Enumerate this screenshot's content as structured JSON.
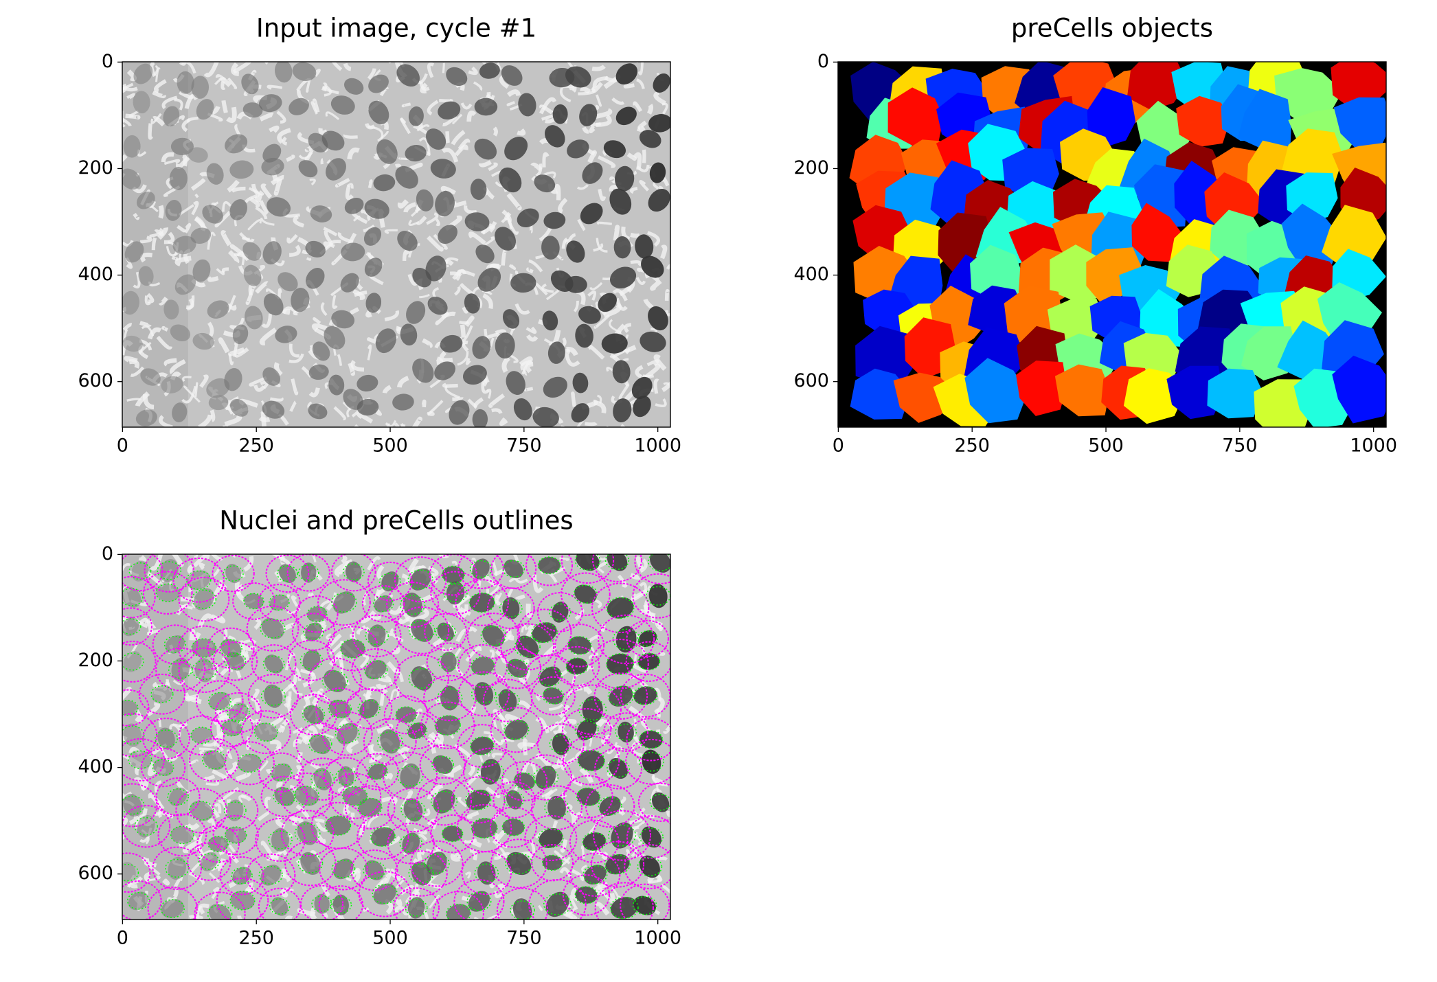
{
  "chart_data": [
    {
      "type": "image",
      "title": "Input image, cycle #1",
      "cmap": "gray",
      "xlim": [
        -0.5,
        1023.5
      ],
      "ylim": [
        685.5,
        -0.5
      ],
      "xticks": [
        0,
        250,
        500,
        750,
        1000
      ],
      "yticks": [
        0,
        200,
        400,
        600
      ]
    },
    {
      "type": "image",
      "title": "preCells objects",
      "cmap": "jet",
      "xlim": [
        -0.5,
        1023.5
      ],
      "ylim": [
        685.5,
        -0.5
      ],
      "xticks": [
        0,
        250,
        500,
        750,
        1000
      ],
      "yticks": [
        0,
        200,
        400,
        600
      ]
    },
    {
      "type": "image",
      "title": "Nuclei and preCells outlines",
      "cmap": "overlay",
      "xlim": [
        -0.5,
        1023.5
      ],
      "ylim": [
        685.5,
        -0.5
      ],
      "xticks": [
        0,
        250,
        500,
        750,
        1000
      ],
      "yticks": [
        0,
        200,
        400,
        600
      ]
    }
  ]
}
